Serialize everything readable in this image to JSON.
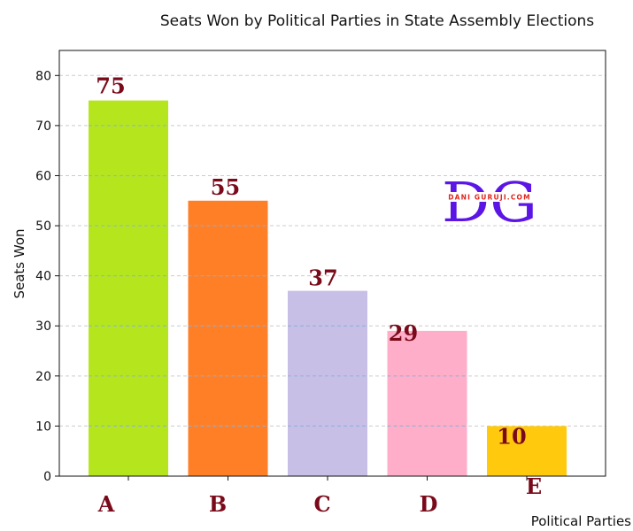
{
  "chart_data": {
    "type": "bar",
    "title": "Seats Won by Political Parties in State Assembly Elections",
    "xlabel": "Political Parties",
    "ylabel": "Seats Won",
    "categories": [
      "A",
      "B",
      "C",
      "D",
      "E"
    ],
    "values": [
      75,
      55,
      37,
      29,
      10
    ],
    "colors": [
      "#b5e61d",
      "#ff7f27",
      "#c8bfe7",
      "#ffaec9",
      "#ffc90e"
    ],
    "ylim": [
      0,
      85
    ],
    "yticks": [
      0,
      10,
      20,
      30,
      40,
      50,
      60,
      70,
      80
    ],
    "grid": true,
    "grid_color": "#cccccc",
    "label_color": "#7a0a1a"
  },
  "watermark": {
    "letters": "DG",
    "text": "DANI GURUJI.COM",
    "letters_color": "#5b16e6",
    "text_color": "#e0231a"
  }
}
